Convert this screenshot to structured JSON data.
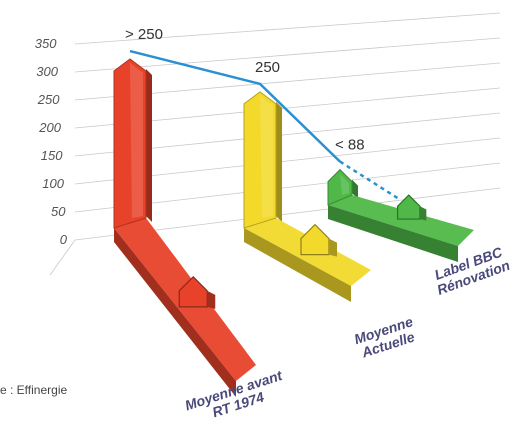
{
  "chart_data": {
    "type": "bar",
    "title": "",
    "xlabel": "",
    "ylabel": "",
    "ylim": [
      0,
      350
    ],
    "y_ticks": [
      0,
      50,
      100,
      150,
      200,
      250,
      300,
      350
    ],
    "categories": [
      "Moyenne avant RT 1974",
      "Moyenne Actuelle",
      "Label BBC Rénovation"
    ],
    "category_lines": [
      [
        "Moyenne avant",
        "RT 1974"
      ],
      [
        "Moyenne",
        "Actuelle"
      ],
      [
        "Label BBC",
        "Rénovation"
      ]
    ],
    "values": [
      330,
      250,
      88
    ],
    "data_labels": [
      "> 250",
      "250",
      "< 88"
    ],
    "colors": [
      "#e8432a",
      "#f2d92a",
      "#4fb848"
    ],
    "trend_color": "#2a90d0",
    "grid": true
  },
  "source": "e : Effinergie"
}
